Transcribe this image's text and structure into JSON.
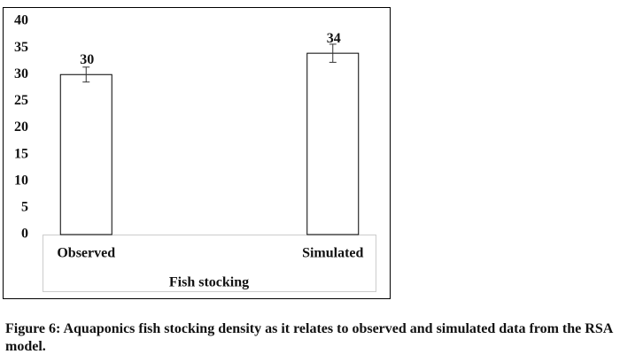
{
  "chart_data": {
    "type": "bar",
    "categories": [
      "Observed",
      "Simulated"
    ],
    "values": [
      30,
      34
    ],
    "errors": [
      1.4,
      1.7
    ],
    "color": "#ffffff",
    "xlabel": "Fish stocking",
    "ylim": [
      0,
      40
    ],
    "yticks": [
      0,
      5,
      10,
      15,
      20,
      25,
      30,
      35,
      40
    ],
    "grid": false,
    "caption": "Figure 6: Aquaponics fish stocking density as it relates to observed and simulated data from the RSA model."
  }
}
